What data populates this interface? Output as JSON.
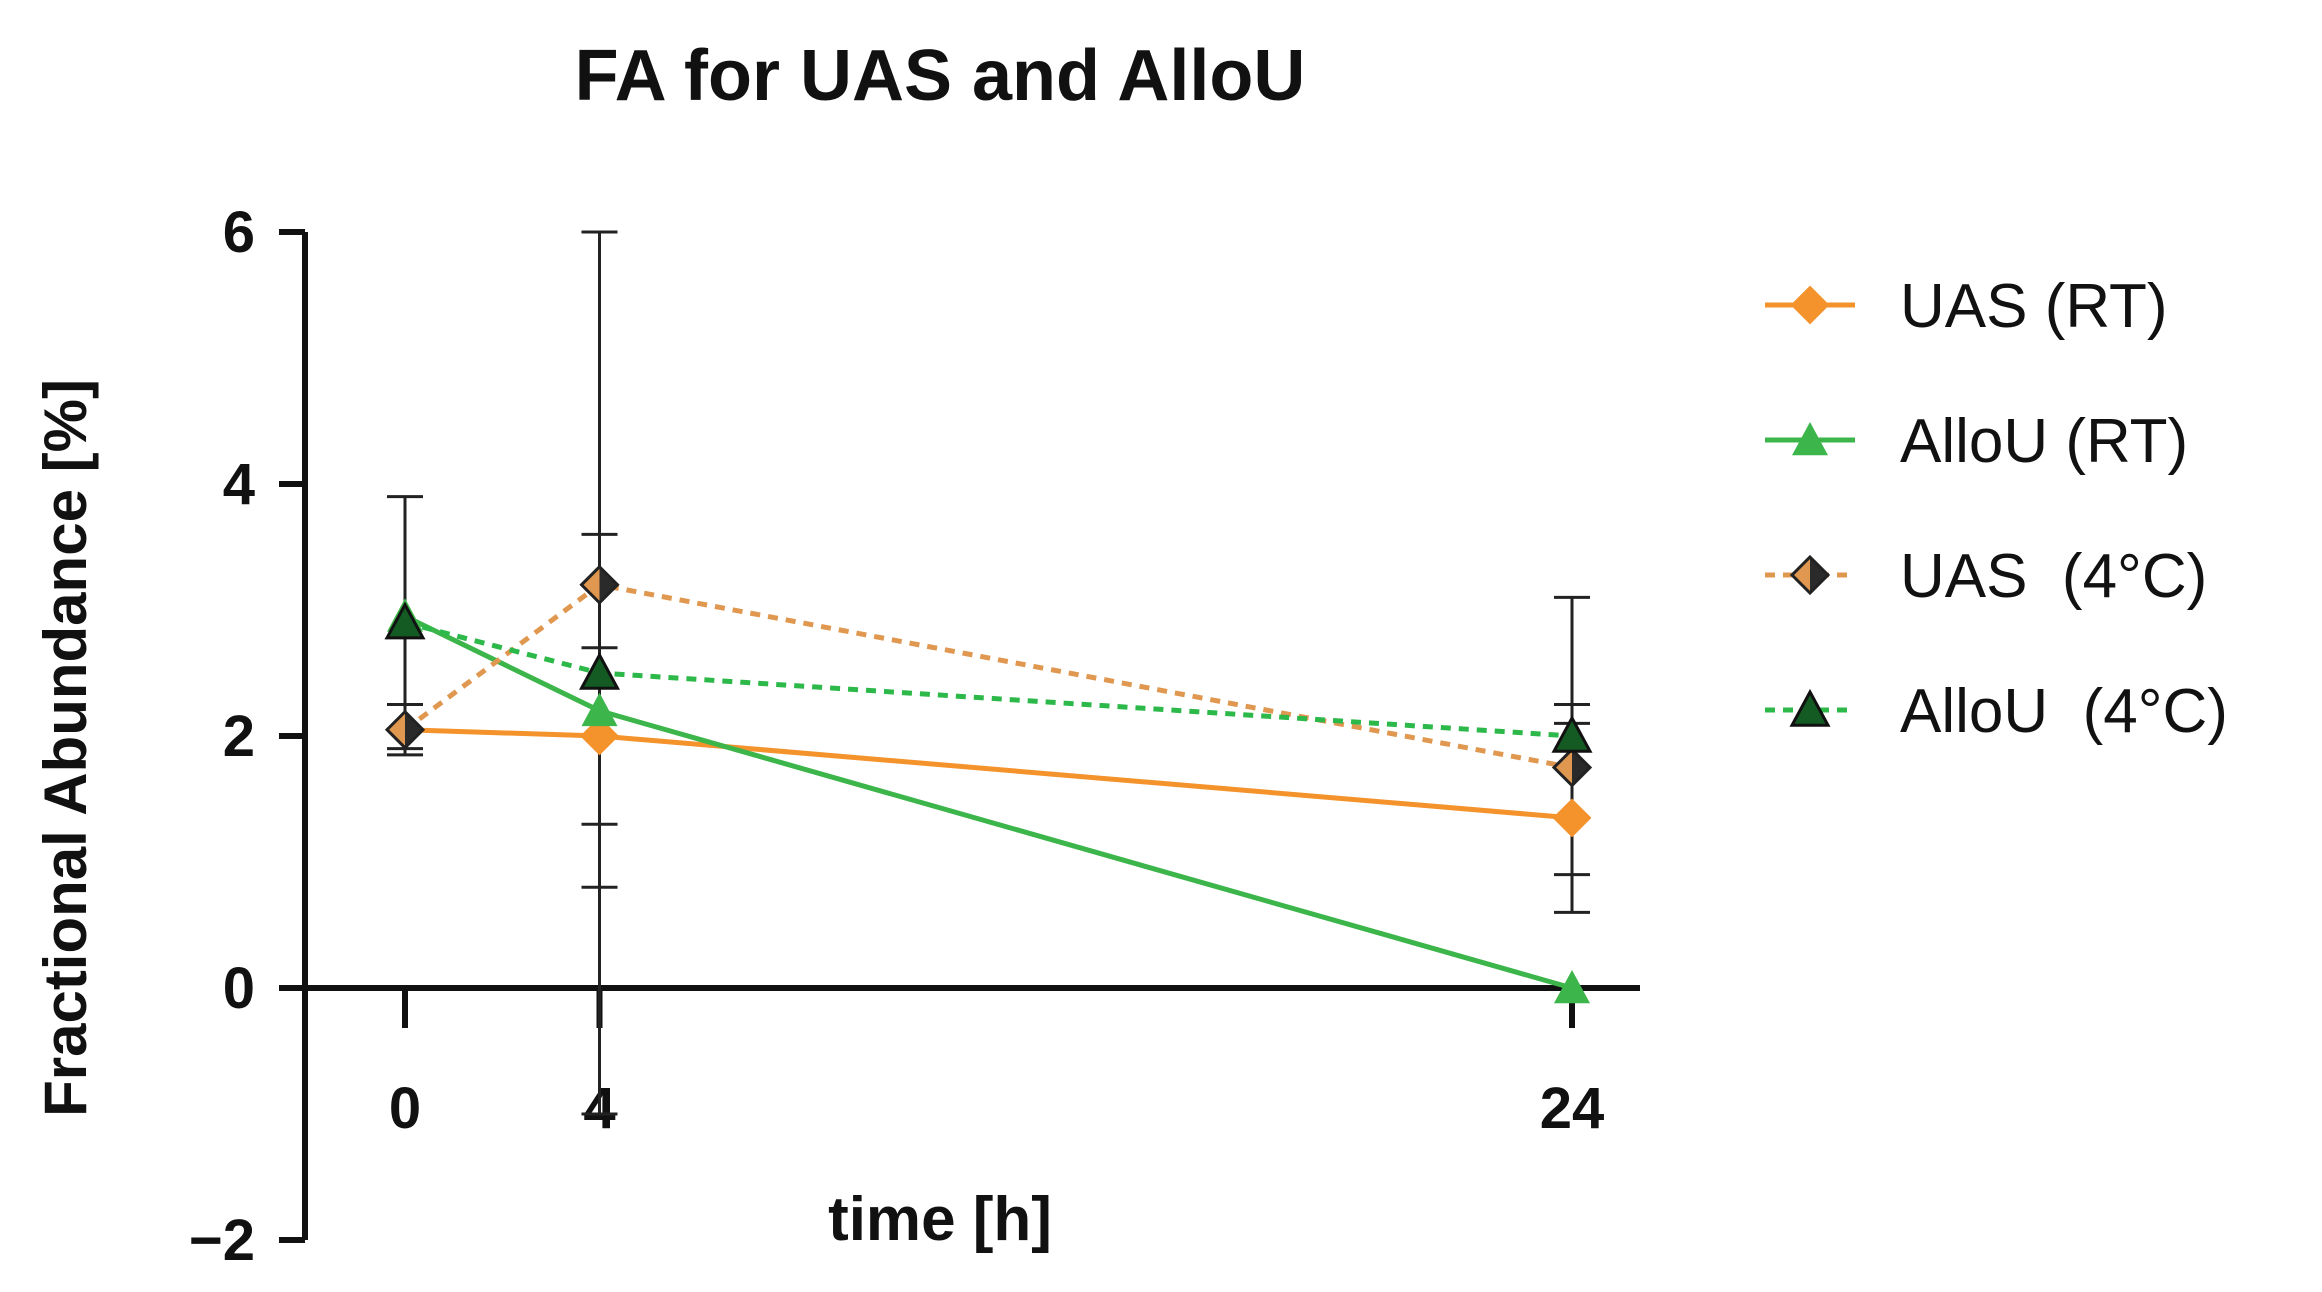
{
  "chart_data": {
    "type": "line",
    "title": "FA for UAS and AlloU",
    "xlabel": "time [h]",
    "ylabel": "Fractional Abundance  [%]",
    "x_ticks": [
      "0",
      "4",
      "24"
    ],
    "x_values": [
      0,
      4,
      24
    ],
    "ylim": [
      -2,
      6
    ],
    "y_ticks": [
      "6",
      "4",
      "2",
      "0",
      "−2"
    ],
    "y_tick_values": [
      6,
      4,
      2,
      0,
      -2
    ],
    "grid": false,
    "legend_position": "right",
    "series": [
      {
        "name": "UAS (RT)",
        "marker": "diamond",
        "style": "solid",
        "color": "#f4922b",
        "x": [
          0,
          4,
          24
        ],
        "y": [
          2.05,
          2.0,
          1.35
        ],
        "err_lo": [
          1.85,
          0.8,
          0.6
        ],
        "err_hi": [
          2.25,
          3.6,
          2.1
        ]
      },
      {
        "name": "AlloU (RT)",
        "marker": "triangle",
        "style": "solid",
        "color": "#3cb54a",
        "x": [
          0,
          4,
          24
        ],
        "y": [
          2.95,
          2.2,
          0.0
        ],
        "err_lo": [
          2.95,
          2.2,
          0.0
        ],
        "err_hi": [
          2.95,
          2.2,
          0.0
        ]
      },
      {
        "name": "UAS  (4°C)",
        "marker": "half-diamond",
        "style": "dotted",
        "color": "#e0974f",
        "x": [
          0,
          4,
          24
        ],
        "y": [
          2.05,
          3.2,
          1.75
        ],
        "err_lo": [
          1.9,
          1.3,
          0.9
        ],
        "err_hi": [
          3.9,
          6.0,
          3.1
        ]
      },
      {
        "name": "AlloU  (4°C)",
        "marker": "triangle-dark",
        "style": "dotted",
        "color": "#2db84a",
        "x": [
          0,
          4,
          24
        ],
        "y": [
          2.9,
          2.5,
          2.0
        ],
        "err_lo": [
          2.9,
          -1.0,
          1.75
        ],
        "err_hi": [
          2.9,
          2.7,
          2.25
        ]
      }
    ]
  }
}
